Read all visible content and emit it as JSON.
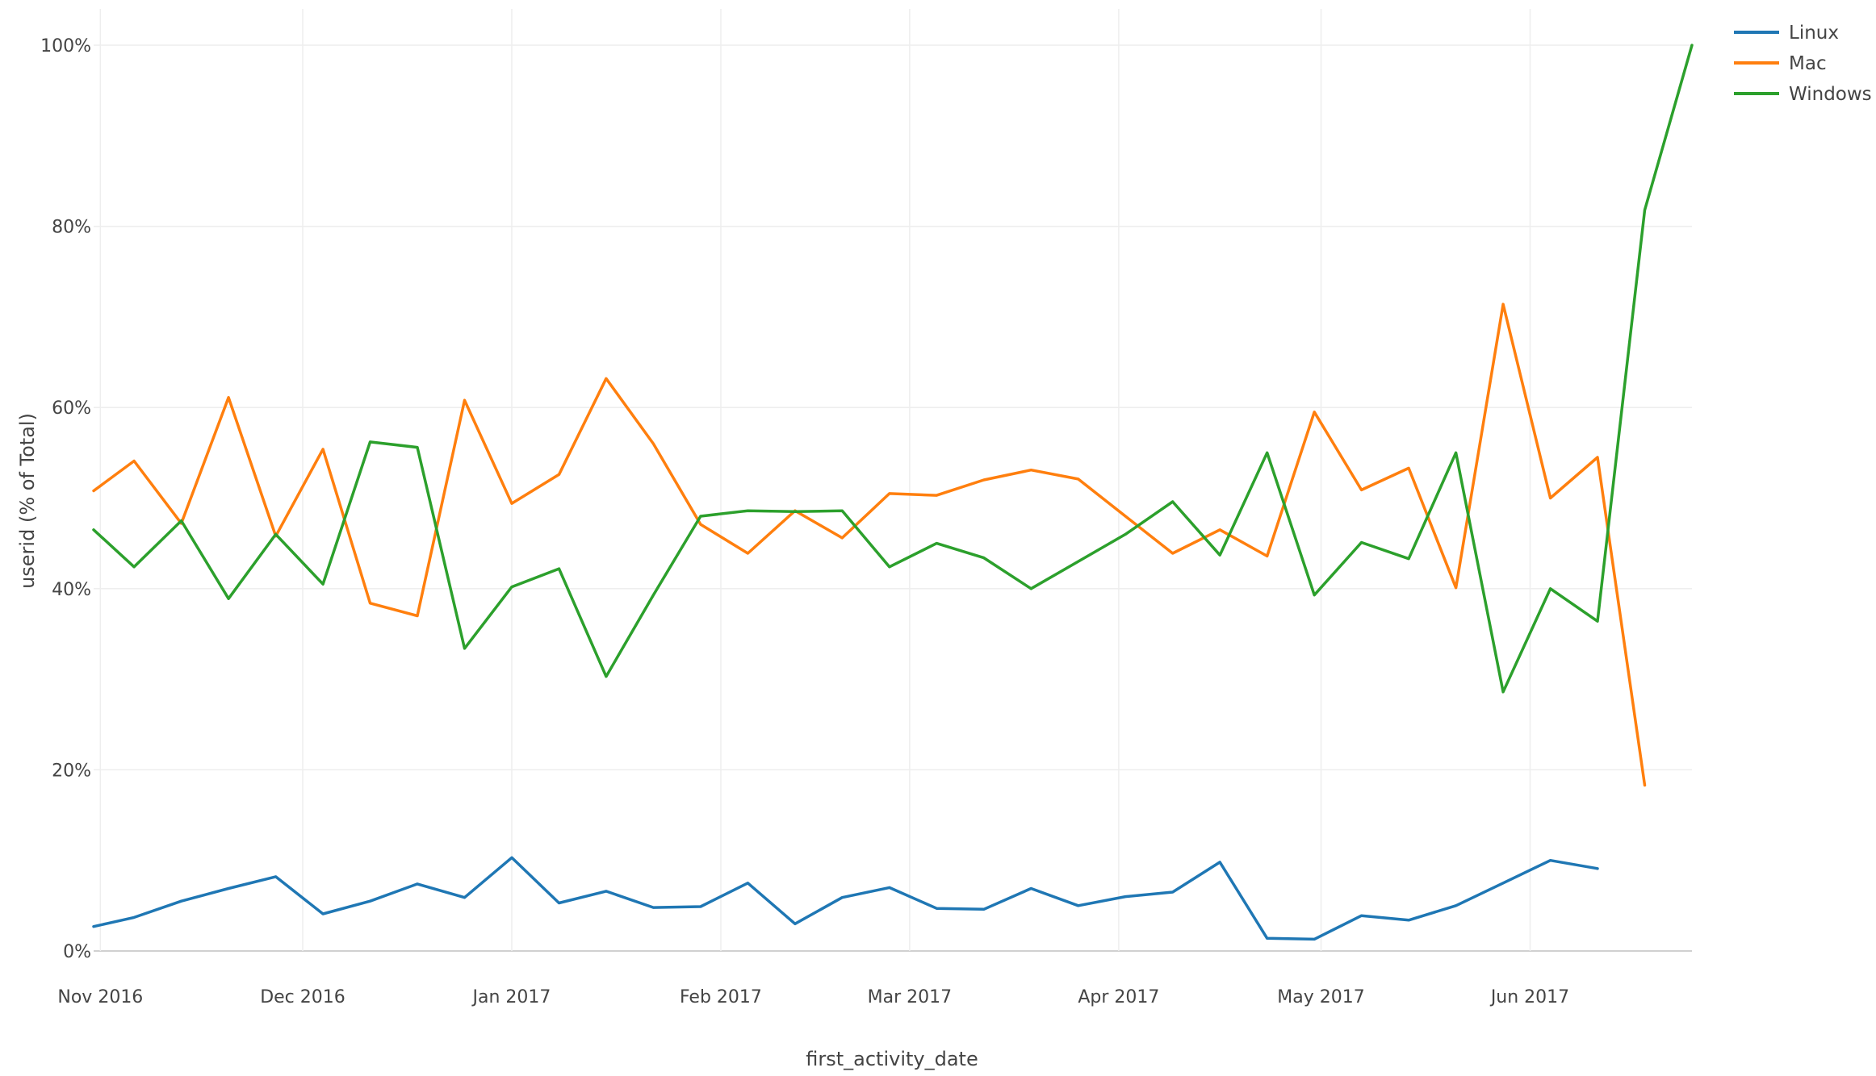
{
  "chart_data": {
    "type": "line",
    "xlabel": "first_activity_date",
    "ylabel": "userid (% of Total)",
    "ylim": [
      0,
      100
    ],
    "y_ticks": [
      0,
      20,
      40,
      60,
      80,
      100
    ],
    "y_tick_labels": [
      "0%",
      "20%",
      "40%",
      "60%",
      "80%",
      "100%"
    ],
    "xlim": [
      "2016-10-31",
      "2017-06-25"
    ],
    "x_ticks": [
      "2016-11-01",
      "2016-12-01",
      "2017-01-01",
      "2017-02-01",
      "2017-03-01",
      "2017-04-01",
      "2017-05-01",
      "2017-06-01"
    ],
    "x_tick_labels": [
      "Nov 2016",
      "Dec 2016",
      "Jan 2017",
      "Feb 2017",
      "Mar 2017",
      "Apr 2017",
      "May 2017",
      "Jun 2017"
    ],
    "grid": true,
    "legend_position": "top-right",
    "x": [
      "2016-10-31",
      "2016-11-06",
      "2016-11-13",
      "2016-11-20",
      "2016-11-27",
      "2016-12-04",
      "2016-12-11",
      "2016-12-18",
      "2016-12-25",
      "2017-01-01",
      "2017-01-08",
      "2017-01-15",
      "2017-01-22",
      "2017-01-29",
      "2017-02-05",
      "2017-02-12",
      "2017-02-19",
      "2017-02-26",
      "2017-03-05",
      "2017-03-12",
      "2017-03-19",
      "2017-03-26",
      "2017-04-02",
      "2017-04-09",
      "2017-04-16",
      "2017-04-23",
      "2017-04-30",
      "2017-05-07",
      "2017-05-14",
      "2017-05-21",
      "2017-05-28",
      "2017-06-04",
      "2017-06-11",
      "2017-06-18",
      "2017-06-25"
    ],
    "series": [
      {
        "name": "Linux",
        "color": "#1f77b4",
        "values": [
          2.7,
          3.7,
          5.5,
          6.9,
          8.2,
          4.1,
          5.5,
          7.4,
          5.9,
          10.3,
          5.3,
          6.6,
          4.8,
          4.9,
          7.5,
          3.0,
          5.9,
          7.0,
          4.7,
          4.6,
          6.9,
          5.0,
          6.0,
          6.5,
          9.8,
          1.4,
          1.3,
          3.9,
          3.4,
          5.0,
          7.5,
          10.0,
          9.1,
          null,
          null
        ]
      },
      {
        "name": "Mac",
        "color": "#ff7f0e",
        "values": [
          50.8,
          54.1,
          47.2,
          61.1,
          45.8,
          55.4,
          38.4,
          37.0,
          60.8,
          49.4,
          52.6,
          63.2,
          56.0,
          47.1,
          43.9,
          48.6,
          45.6,
          50.5,
          50.3,
          52.0,
          53.1,
          52.1,
          48.0,
          43.9,
          46.5,
          43.6,
          59.5,
          50.9,
          53.3,
          40.1,
          71.4,
          50.0,
          54.5,
          18.3,
          null
        ]
      },
      {
        "name": "Windows",
        "color": "#2ca02c",
        "values": [
          46.5,
          42.4,
          47.5,
          38.9,
          46.0,
          40.5,
          56.2,
          55.6,
          33.4,
          40.2,
          42.2,
          30.3,
          39.3,
          48.0,
          48.6,
          48.5,
          48.6,
          42.4,
          45.0,
          43.4,
          40.0,
          43.0,
          46.0,
          49.6,
          43.7,
          55.0,
          39.3,
          45.1,
          43.3,
          55.0,
          28.6,
          40.0,
          36.4,
          81.8,
          100.0
        ]
      }
    ]
  }
}
